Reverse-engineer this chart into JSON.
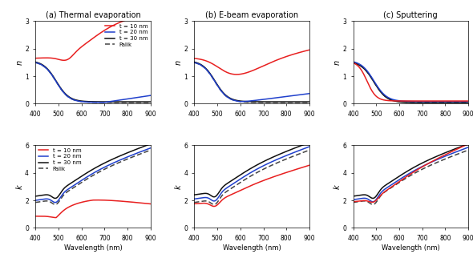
{
  "wavelength_range": [
    400,
    900
  ],
  "titles": [
    "(a) Thermal evaporation",
    "(b) E-beam evaporation",
    "(c) Sputtering"
  ],
  "legend_labels": [
    "t = 10 nm",
    "t = 20 nm",
    "t = 30 nm",
    "Palik"
  ],
  "colors": {
    "t10": "#e82020",
    "t20": "#2040cc",
    "t30": "#111111",
    "palik": "#444444"
  },
  "xlabel": "Wavelength (nm)",
  "ylabel_n": "n",
  "ylabel_k": "k",
  "ylim_n": [
    0,
    3
  ],
  "ylim_k": [
    0,
    6
  ],
  "yticks_n": [
    0,
    1,
    2,
    3
  ],
  "yticks_k": [
    0,
    2,
    4,
    6
  ],
  "xticks": [
    400,
    500,
    600,
    700,
    800,
    900
  ]
}
